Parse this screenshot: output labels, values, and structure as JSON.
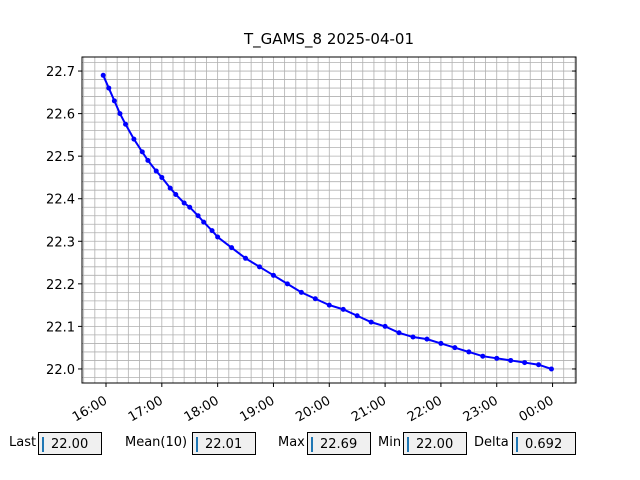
{
  "chart_data": {
    "type": "line",
    "title": "T_GAMS_8 2025-04-01",
    "x": [
      15.95,
      16.05,
      16.15,
      16.25,
      16.35,
      16.5,
      16.65,
      16.75,
      16.9,
      17.0,
      17.15,
      17.25,
      17.4,
      17.5,
      17.65,
      17.75,
      17.9,
      18.0,
      18.25,
      18.5,
      18.75,
      19.0,
      19.25,
      19.5,
      19.75,
      20.0,
      20.25,
      20.5,
      20.75,
      21.0,
      21.25,
      21.5,
      21.75,
      22.0,
      22.25,
      22.5,
      22.75,
      23.0,
      23.25,
      23.5,
      23.75,
      23.98
    ],
    "series": [
      {
        "name": "T_GAMS_8",
        "color": "#0000ff",
        "values": [
          22.69,
          22.66,
          22.63,
          22.6,
          22.575,
          22.54,
          22.51,
          22.49,
          22.465,
          22.45,
          22.425,
          22.41,
          22.39,
          22.38,
          22.36,
          22.345,
          22.325,
          22.31,
          22.285,
          22.26,
          22.24,
          22.22,
          22.2,
          22.18,
          22.165,
          22.15,
          22.14,
          22.125,
          22.11,
          22.1,
          22.085,
          22.075,
          22.07,
          22.06,
          22.05,
          22.04,
          22.03,
          22.025,
          22.02,
          22.015,
          22.01,
          22.0
        ]
      }
    ],
    "xlim": [
      15.57,
      24.42
    ],
    "ylim": [
      21.967,
      22.733
    ],
    "xticks": [
      {
        "value": 16,
        "label": "16:00"
      },
      {
        "value": 17,
        "label": "17:00"
      },
      {
        "value": 18,
        "label": "18:00"
      },
      {
        "value": 19,
        "label": "19:00"
      },
      {
        "value": 20,
        "label": "20:00"
      },
      {
        "value": 21,
        "label": "21:00"
      },
      {
        "value": 22,
        "label": "22:00"
      },
      {
        "value": 23,
        "label": "23:00"
      },
      {
        "value": 24,
        "label": "00:00"
      }
    ],
    "yticks": [
      {
        "value": 22.0,
        "label": "22.0"
      },
      22.1,
      22.2,
      22.3,
      22.4,
      22.5,
      22.6,
      22.7
    ],
    "grid": true
  },
  "status_bar": [
    {
      "label": "Last",
      "value": "22.00"
    },
    {
      "label": "Mean(10)",
      "value": "22.01"
    },
    {
      "label": "Max",
      "value": "22.69"
    },
    {
      "label": "Min",
      "value": "22.00"
    },
    {
      "label": "Delta",
      "value": "0.692"
    }
  ]
}
